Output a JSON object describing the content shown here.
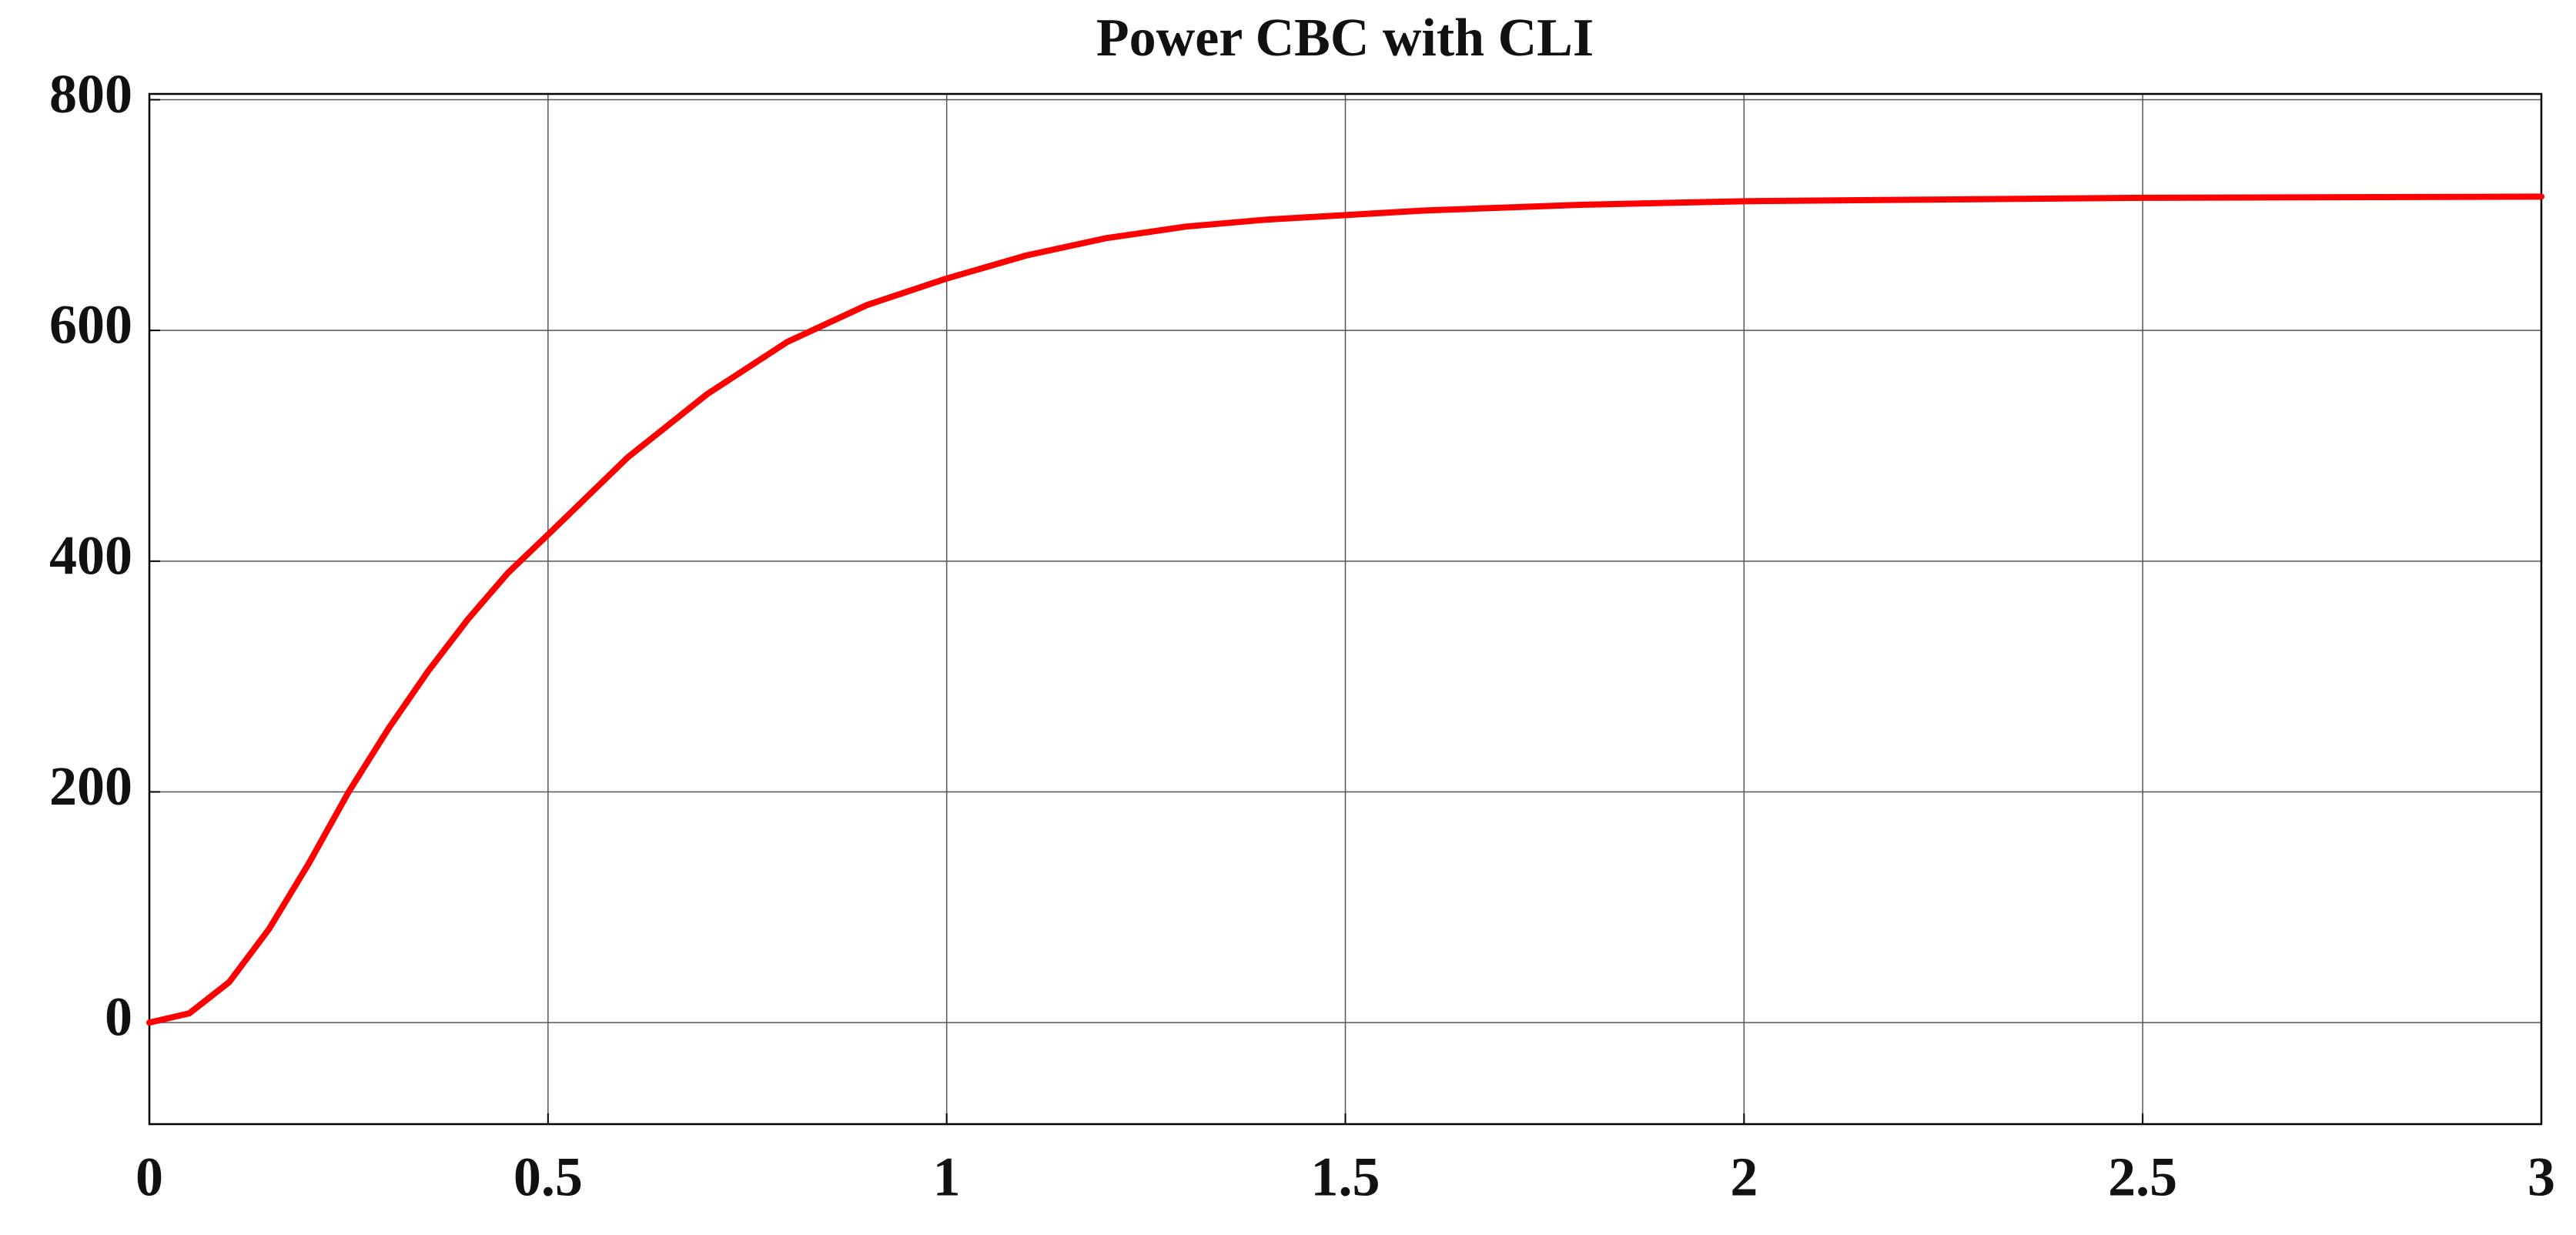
{
  "chart_data": {
    "type": "line",
    "title": "Power CBC  with CLI",
    "x": [
      0,
      0.05,
      0.1,
      0.15,
      0.2,
      0.25,
      0.3,
      0.35,
      0.4,
      0.45,
      0.5,
      0.6,
      0.7,
      0.8,
      0.9,
      1.0,
      1.1,
      1.2,
      1.3,
      1.4,
      1.5,
      1.6,
      1.8,
      2.0,
      2.5,
      3.0
    ],
    "values": [
      0,
      8,
      35,
      81,
      138,
      200,
      255,
      305,
      350,
      390,
      423,
      490,
      545,
      590,
      622,
      645,
      665,
      680,
      690,
      696,
      700,
      704,
      709,
      712,
      715,
      716
    ],
    "color": "#ff0000",
    "xlim": [
      0,
      3
    ],
    "ylim": [
      -88,
      805
    ],
    "xticks": [
      0,
      0.5,
      1,
      1.5,
      2,
      2.5,
      3
    ],
    "yticks": [
      0,
      200,
      400,
      600,
      800
    ],
    "grid": true
  }
}
